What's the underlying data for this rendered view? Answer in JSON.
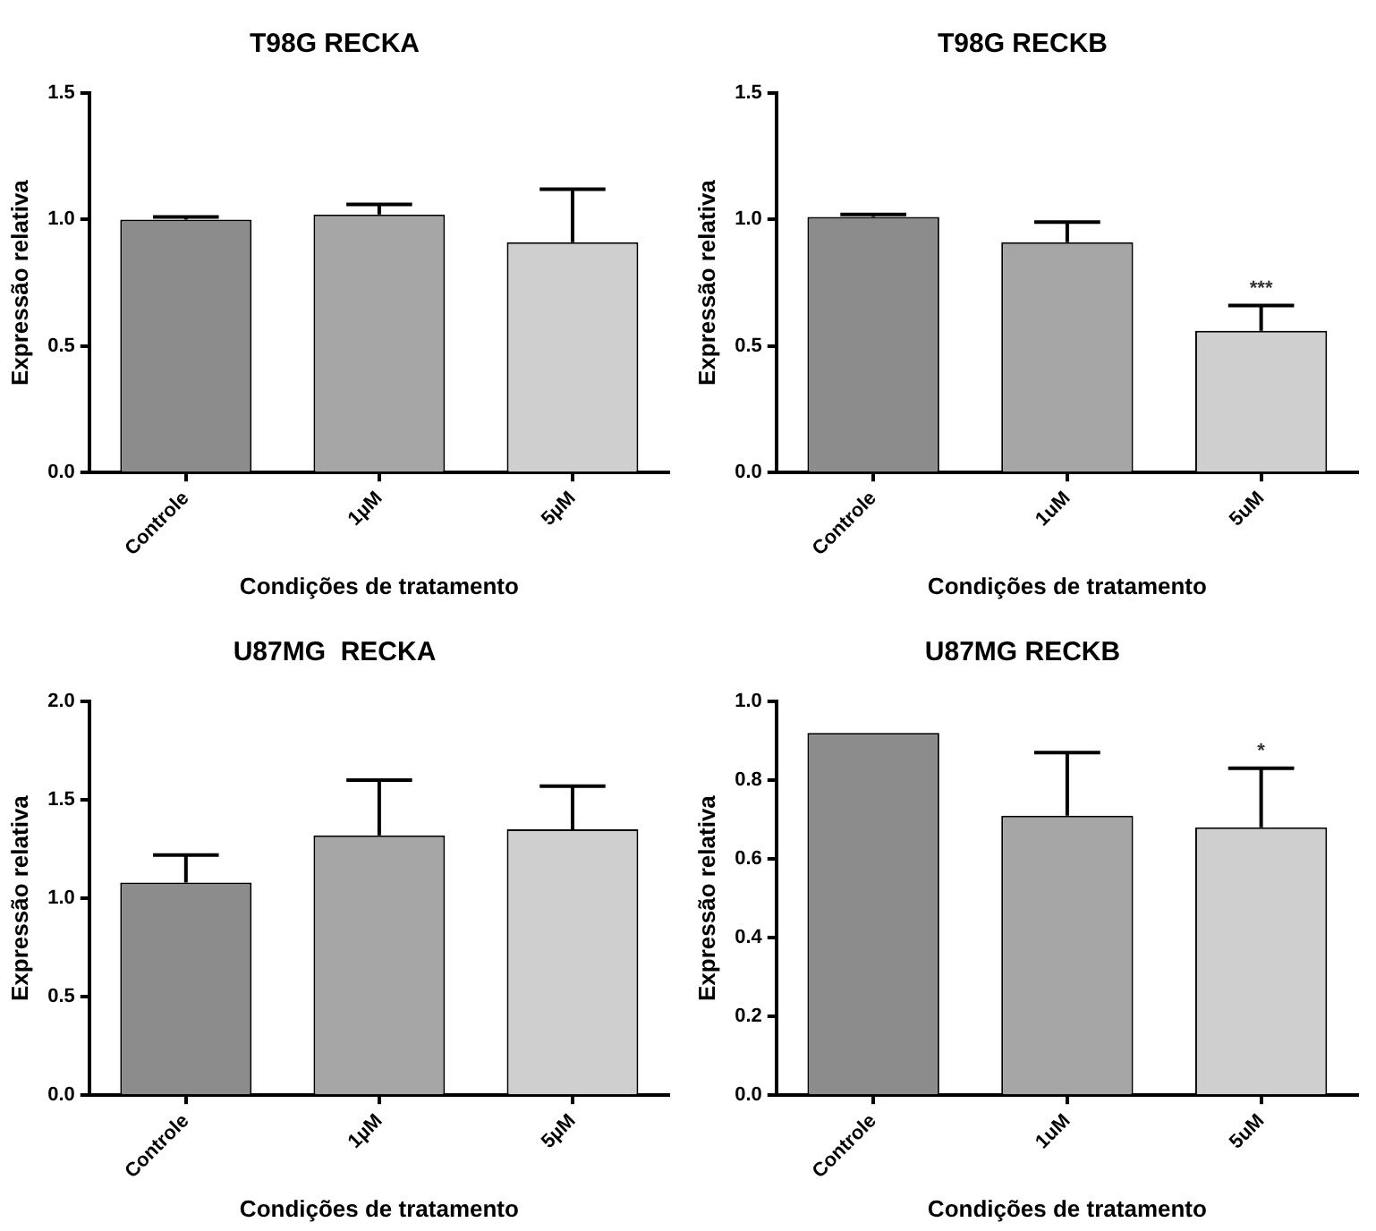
{
  "chart_data": [
    {
      "type": "bar",
      "title": "T98G RECKA",
      "xlabel": "Condições de tratamento",
      "ylabel": "Expressão relativa",
      "categories": [
        "Controle",
        "1µM",
        "5µM"
      ],
      "values": [
        1.0,
        1.02,
        0.91
      ],
      "colors": [
        "#8c8c8c",
        "#a6a6a6",
        "#cfcfcf"
      ],
      "errors": [
        [
          1.0,
          1.01
        ],
        [
          1.02,
          1.06
        ],
        [
          0.91,
          1.12
        ]
      ],
      "ylim": [
        0,
        1.5
      ],
      "yticks": [
        {
          "value": 0,
          "label": "0.0"
        },
        {
          "value": 0.5,
          "label": "0.5"
        },
        {
          "value": 1,
          "label": "1.0"
        },
        {
          "value": 1.5,
          "label": "1.5"
        }
      ],
      "grid": false,
      "legend": false
    },
    {
      "type": "bar",
      "title": "T98G RECKB",
      "xlabel": "Condições de tratamento",
      "ylabel": "Expressão relativa",
      "categories": [
        "Controle",
        "1uM",
        "5uM"
      ],
      "values": [
        1.01,
        0.91,
        0.56
      ],
      "colors": [
        "#8c8c8c",
        "#a6a6a6",
        "#cfcfcf"
      ],
      "errors": [
        [
          1.01,
          1.02
        ],
        [
          0.91,
          0.99
        ],
        [
          0.56,
          0.66
        ]
      ],
      "ylim": [
        0,
        1.5
      ],
      "yticks": [
        {
          "value": 0,
          "label": "0.0"
        },
        {
          "value": 0.5,
          "label": "0.5"
        },
        {
          "value": 1,
          "label": "1.0"
        },
        {
          "value": 1.5,
          "label": "1.5"
        }
      ],
      "annotations": [
        {
          "text": "***",
          "x": "5uM",
          "y": 0.66
        }
      ],
      "grid": false,
      "legend": false
    },
    {
      "type": "bar",
      "title": "U87MG  RECKA",
      "xlabel": "Condições de tratamento",
      "ylabel": "Expressão relativa",
      "categories": [
        "Controle",
        "1µM",
        "5µM"
      ],
      "values": [
        1.08,
        1.32,
        1.35
      ],
      "colors": [
        "#8c8c8c",
        "#a6a6a6",
        "#cfcfcf"
      ],
      "errors": [
        [
          1.08,
          1.22
        ],
        [
          1.32,
          1.6
        ],
        [
          1.35,
          1.57
        ]
      ],
      "ylim": [
        0,
        2
      ],
      "yticks": [
        {
          "value": 0,
          "label": "0.0"
        },
        {
          "value": 0.5,
          "label": "0.5"
        },
        {
          "value": 1,
          "label": "1.0"
        },
        {
          "value": 1.5,
          "label": "1.5"
        },
        {
          "value": 2,
          "label": "2.0"
        }
      ],
      "grid": false,
      "legend": false
    },
    {
      "type": "bar",
      "title": "U87MG RECKB",
      "xlabel": "Condições de tratamento",
      "ylabel": "Expressão relativa",
      "categories": [
        "Controle",
        "1uM",
        "5uM"
      ],
      "values": [
        0.92,
        0.71,
        0.68
      ],
      "colors": [
        "#8c8c8c",
        "#a6a6a6",
        "#cfcfcf"
      ],
      "errors": [
        null,
        [
          0.71,
          0.87
        ],
        [
          0.68,
          0.83
        ]
      ],
      "ylim": [
        0,
        1
      ],
      "yticks": [
        {
          "value": 0,
          "label": "0.0"
        },
        {
          "value": 0.2,
          "label": "0.2"
        },
        {
          "value": 0.4,
          "label": "0.4"
        },
        {
          "value": 0.6,
          "label": "0.6"
        },
        {
          "value": 0.8,
          "label": "0.8"
        },
        {
          "value": 1,
          "label": "1.0"
        }
      ],
      "annotations": [
        {
          "text": "*",
          "x": "5uM",
          "y": 0.83
        }
      ],
      "grid": false,
      "legend": false
    }
  ]
}
